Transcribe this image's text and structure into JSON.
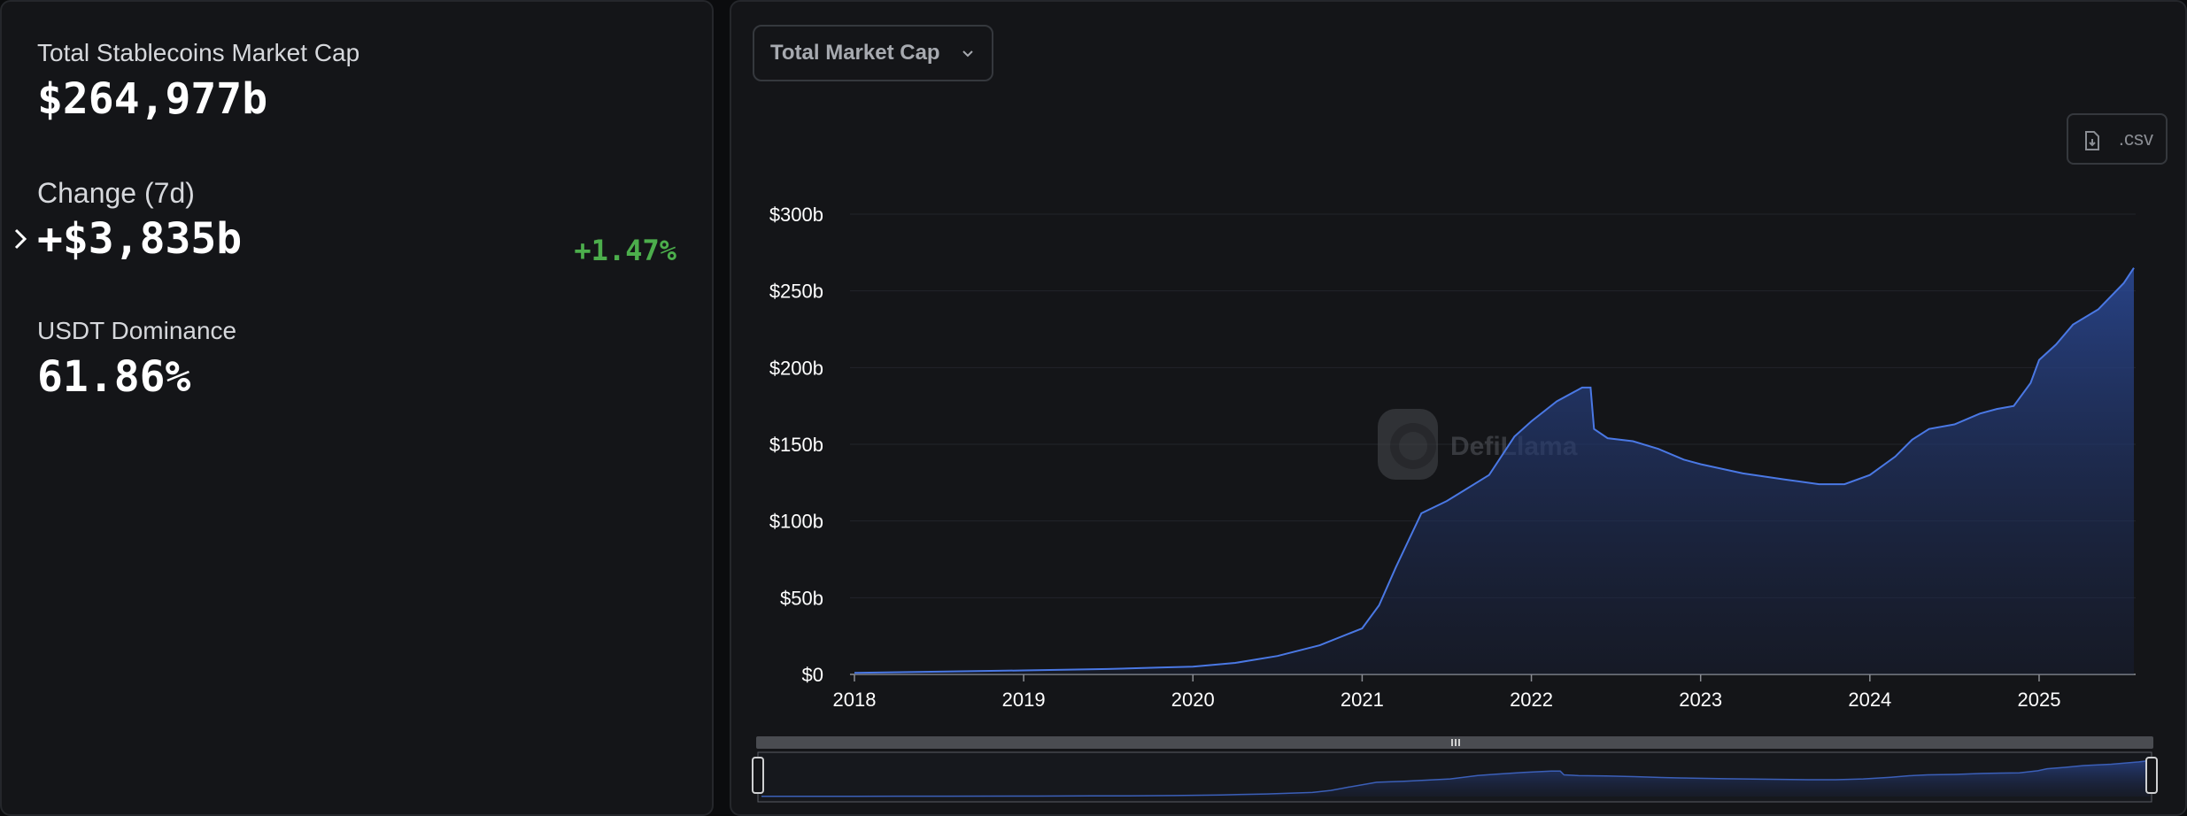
{
  "summary": {
    "total_label": "Total Stablecoins Market Cap",
    "total_value": "$264,977b",
    "change_label": "Change (7d)",
    "change_value": "+$3,835b",
    "change_pct": "+1.47%",
    "dominance_label": "USDT Dominance",
    "dominance_value": "61.86%"
  },
  "controls": {
    "dropdown_label": "Total Market Cap",
    "csv_label": ".csv"
  },
  "watermark": "DefiLlama",
  "colors": {
    "line": "#4a78e4",
    "area_top": "#2b4a99",
    "positive": "#4cae4c"
  },
  "chart_data": {
    "type": "area",
    "title": "",
    "xlabel": "",
    "ylabel": "",
    "ylim": [
      0,
      300
    ],
    "yticks": [
      {
        "value": 0,
        "label": "$0"
      },
      {
        "value": 50,
        "label": "$50b"
      },
      {
        "value": 100,
        "label": "$100b"
      },
      {
        "value": 150,
        "label": "$150b"
      },
      {
        "value": 200,
        "label": "$200b"
      },
      {
        "value": 250,
        "label": "$250b"
      },
      {
        "value": 300,
        "label": "$300b"
      }
    ],
    "xticks": [
      {
        "value": 2018,
        "label": "2018"
      },
      {
        "value": 2019,
        "label": "2019"
      },
      {
        "value": 2020,
        "label": "2020"
      },
      {
        "value": 2021,
        "label": "2021"
      },
      {
        "value": 2022,
        "label": "2022"
      },
      {
        "value": 2023,
        "label": "2023"
      },
      {
        "value": 2024,
        "label": "2024"
      },
      {
        "value": 2025,
        "label": "2025"
      }
    ],
    "grid": true,
    "series": [
      {
        "values_unit": "billions USD",
        "points": [
          [
            2018.0,
            1.0
          ],
          [
            2018.5,
            1.8
          ],
          [
            2019.0,
            2.6
          ],
          [
            2019.5,
            3.5
          ],
          [
            2019.8,
            4.5
          ],
          [
            2020.0,
            5.0
          ],
          [
            2020.25,
            7.5
          ],
          [
            2020.5,
            12
          ],
          [
            2020.75,
            19
          ],
          [
            2021.0,
            30
          ],
          [
            2021.1,
            45
          ],
          [
            2021.2,
            70
          ],
          [
            2021.35,
            105
          ],
          [
            2021.5,
            113
          ],
          [
            2021.75,
            130
          ],
          [
            2021.9,
            155
          ],
          [
            2022.0,
            165
          ],
          [
            2022.15,
            178
          ],
          [
            2022.3,
            187
          ],
          [
            2022.35,
            187
          ],
          [
            2022.37,
            160
          ],
          [
            2022.45,
            154
          ],
          [
            2022.6,
            152
          ],
          [
            2022.75,
            147
          ],
          [
            2022.9,
            140
          ],
          [
            2023.0,
            137
          ],
          [
            2023.25,
            131
          ],
          [
            2023.5,
            127
          ],
          [
            2023.7,
            124
          ],
          [
            2023.85,
            124
          ],
          [
            2024.0,
            130
          ],
          [
            2024.15,
            142
          ],
          [
            2024.25,
            153
          ],
          [
            2024.35,
            160
          ],
          [
            2024.5,
            163
          ],
          [
            2024.65,
            170
          ],
          [
            2024.75,
            173
          ],
          [
            2024.85,
            175
          ],
          [
            2024.95,
            190
          ],
          [
            2025.0,
            205
          ],
          [
            2025.1,
            215
          ],
          [
            2025.2,
            228
          ],
          [
            2025.35,
            238
          ],
          [
            2025.5,
            255
          ],
          [
            2025.56,
            265
          ]
        ]
      }
    ]
  }
}
